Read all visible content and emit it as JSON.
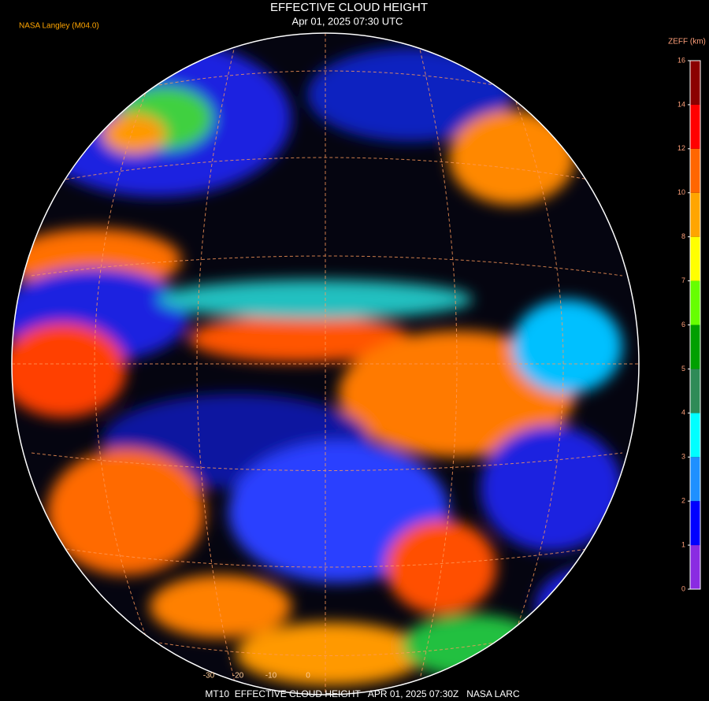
{
  "header": {
    "title": "EFFECTIVE CLOUD HEIGHT",
    "subtitle": "Apr 01, 2025 07:30 UTC",
    "source": "NASA Langley (M04.0)"
  },
  "colorbar": {
    "label": "ZEFF (km)",
    "ticks": [
      0,
      1,
      2,
      3,
      4,
      5,
      6,
      7,
      8,
      10,
      12,
      14,
      16
    ],
    "colors": [
      "#8a2be2",
      "#0000ff",
      "#1e90ff",
      "#00ffff",
      "#2e8b57",
      "#00a000",
      "#66ff00",
      "#ffff00",
      "#ffa500",
      "#ff6600",
      "#ff0000",
      "#8b0000"
    ]
  },
  "grid_labels": [
    "-30",
    "-20",
    "-10",
    "0"
  ],
  "footer": "MT10  EFFECTIVE CLOUD HEIGHT   APR 01, 2025 07:30Z   NASA LARC"
}
